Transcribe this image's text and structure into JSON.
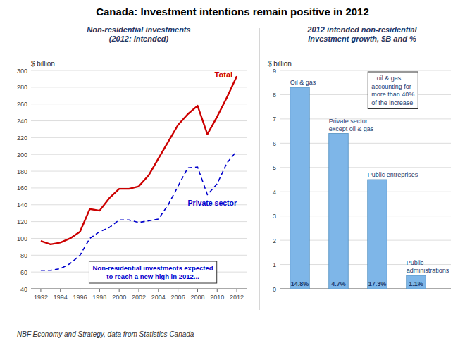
{
  "title": "Canada: Investment intentions remain positive in 2012",
  "footer": "NBF Economy and Strategy, data from Statistics Canada",
  "chart_data": [
    {
      "type": "line",
      "subtitle": "Non-residential investments\n(2012: intended)",
      "y_label": "$ billion",
      "x": [
        1992,
        1993,
        1994,
        1995,
        1996,
        1997,
        1998,
        1999,
        2000,
        2001,
        2002,
        2003,
        2004,
        2005,
        2006,
        2007,
        2008,
        2009,
        2010,
        2011,
        2012
      ],
      "xlim": [
        1991,
        2013
      ],
      "xticks": [
        1992,
        1994,
        1996,
        1998,
        2000,
        2002,
        2004,
        2006,
        2008,
        2010,
        2012
      ],
      "ylim": [
        40,
        300
      ],
      "yticks": [
        40,
        60,
        80,
        100,
        120,
        140,
        160,
        180,
        200,
        220,
        240,
        260,
        280,
        300
      ],
      "grid": true,
      "series": [
        {
          "name": "Total",
          "color": "#CC0000",
          "line_style": "solid",
          "values": [
            97,
            93,
            95,
            100,
            108,
            135,
            133,
            148,
            159,
            159,
            162,
            175,
            195,
            215,
            235,
            248,
            258,
            224,
            245,
            268,
            293
          ]
        },
        {
          "name": "Private sector",
          "color": "#0000CC",
          "line_style": "dashed",
          "values": [
            62,
            62,
            64,
            70,
            80,
            100,
            108,
            113,
            122,
            122,
            119,
            121,
            123,
            140,
            162,
            184,
            185,
            152,
            165,
            190,
            204
          ]
        }
      ],
      "annotation": "Non-residential investments expected\nto reach a new high in 2012..."
    },
    {
      "type": "bar",
      "subtitle": "2012 intended non-residential\ninvestment growth, $B and %",
      "y_label": "$ billion",
      "categories": [
        "Oil & gas",
        "Private sector\nexcept oil & gas",
        "Public entreprises",
        "Public\nadministrations"
      ],
      "values": [
        8.3,
        6.4,
        4.5,
        0.55
      ],
      "percent_labels": [
        "14.8%",
        "4.7%",
        "17.3%",
        "1.1%"
      ],
      "color": "#7EB6E8",
      "ylim": [
        0,
        9
      ],
      "yticks": [
        0,
        1,
        2,
        3,
        4,
        5,
        6,
        7,
        8,
        9
      ],
      "grid": true,
      "annotation": "...oil & gas\naccounting for\nmore than 40%\nof the increase"
    }
  ]
}
